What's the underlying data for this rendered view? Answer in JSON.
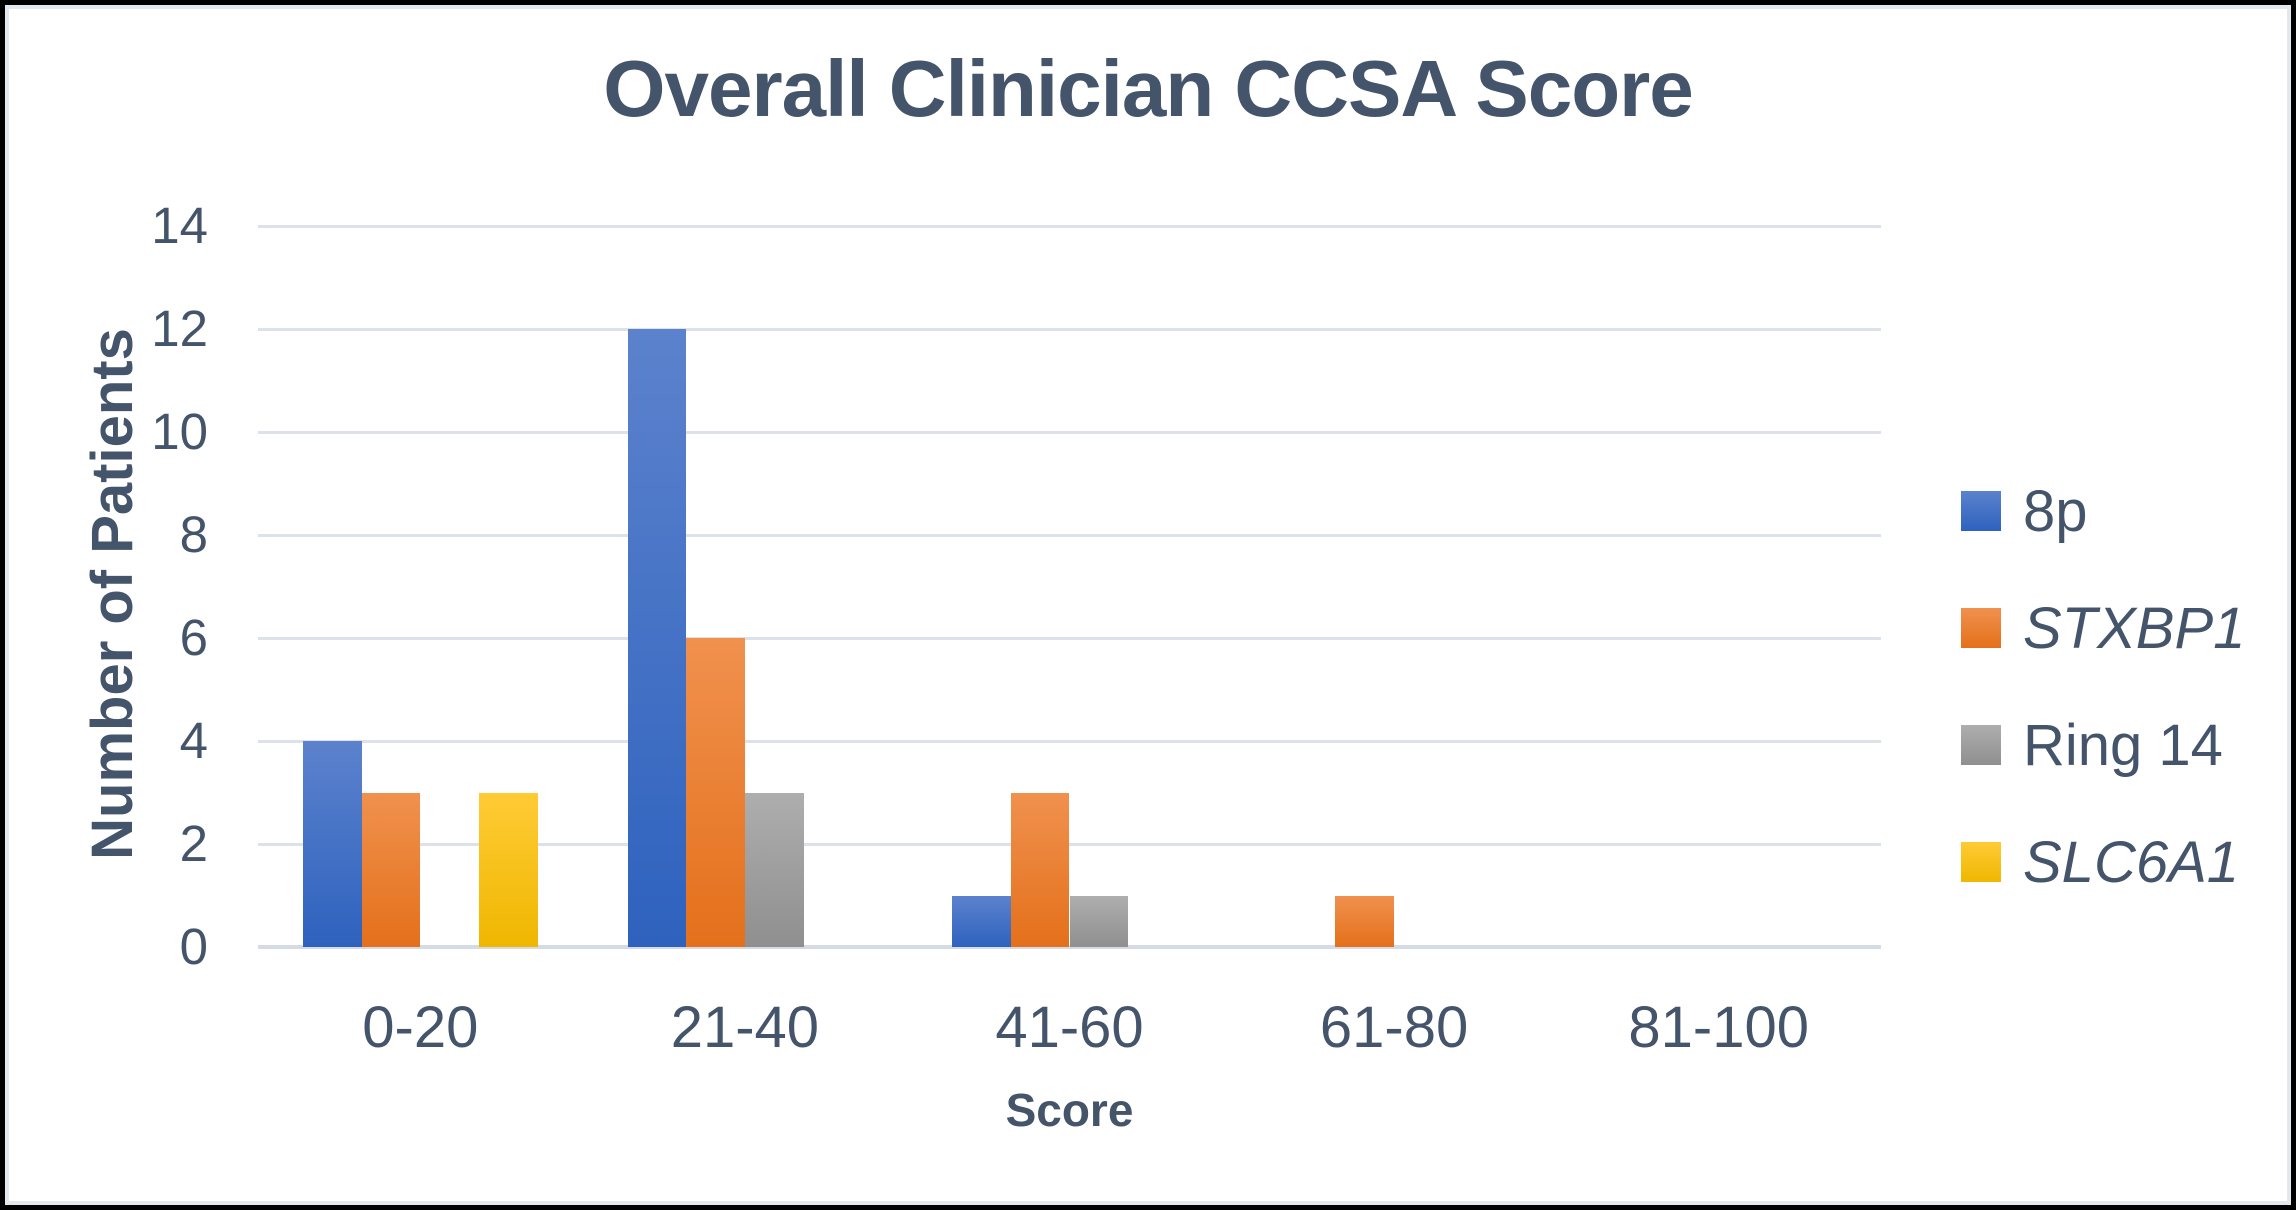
{
  "chart_data": {
    "type": "bar",
    "title": "Overall Clinician CCSA Score",
    "xlabel": "Score",
    "ylabel": "Number of Patients",
    "categories": [
      "0-20",
      "21-40",
      "41-60",
      "61-80",
      "81-100"
    ],
    "series": [
      {
        "name": "8p",
        "italic": false,
        "color": "#4472C4",
        "color_light": "#5C82CD",
        "color_dark": "#2E62BE",
        "values": [
          4,
          12,
          1,
          0,
          0
        ]
      },
      {
        "name": "STXBP1",
        "italic": true,
        "color": "#ED7D31",
        "color_light": "#F0914E",
        "color_dark": "#E4701B",
        "values": [
          3,
          6,
          3,
          1,
          0
        ]
      },
      {
        "name": "Ring 14",
        "italic": false,
        "color": "#A5A5A5",
        "color_light": "#AEAEAE",
        "color_dark": "#8F8F8F",
        "values": [
          0,
          3,
          1,
          0,
          0
        ]
      },
      {
        "name": "SLC6A1",
        "italic": true,
        "color": "#FFC000",
        "color_light": "#FFCB36",
        "color_dark": "#EFB700",
        "values": [
          3,
          0,
          0,
          0,
          0
        ]
      }
    ],
    "ylim": [
      0,
      14
    ],
    "yticks": [
      0,
      2,
      4,
      6,
      8,
      10,
      12,
      14
    ],
    "grid": true,
    "legend_position": "right"
  },
  "colors": {
    "text": "#44546A",
    "gridline": "#DDE2EA",
    "axis_line": "#D5DBE4",
    "frame_border": "#000000",
    "frame_inner_line": "#E3E7EE",
    "background": "#FFFFFF"
  }
}
